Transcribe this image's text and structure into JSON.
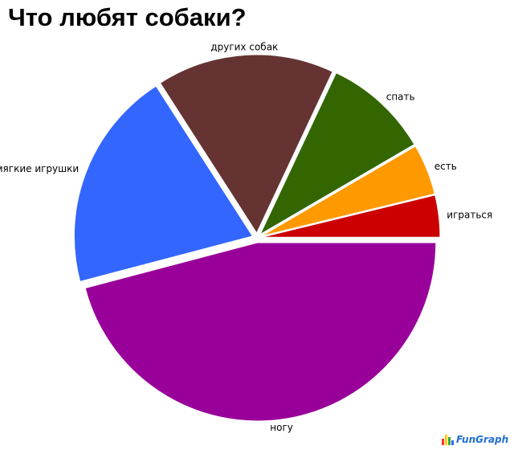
{
  "chart_data": {
    "type": "pie",
    "title": "Что любят собаки?",
    "slices": [
      {
        "label": "играться",
        "value": 3.8,
        "color": "#cc0000"
      },
      {
        "label": "есть",
        "value": 4.6,
        "color": "#ff9900"
      },
      {
        "label": "спать",
        "value": 9.6,
        "color": "#336600"
      },
      {
        "label": "других собак",
        "value": 16.1,
        "color": "#663333"
      },
      {
        "label": "мягкие игрушки",
        "value": 20.0,
        "color": "#3366ff"
      },
      {
        "label": "ногу",
        "value": 45.9,
        "color": "#990099"
      }
    ],
    "legend": "none"
  },
  "branding": {
    "logo_text": "FunGraph",
    "logo_colors": [
      "#ff3333",
      "#ffcc00",
      "#33aa33",
      "#3366ff"
    ]
  }
}
